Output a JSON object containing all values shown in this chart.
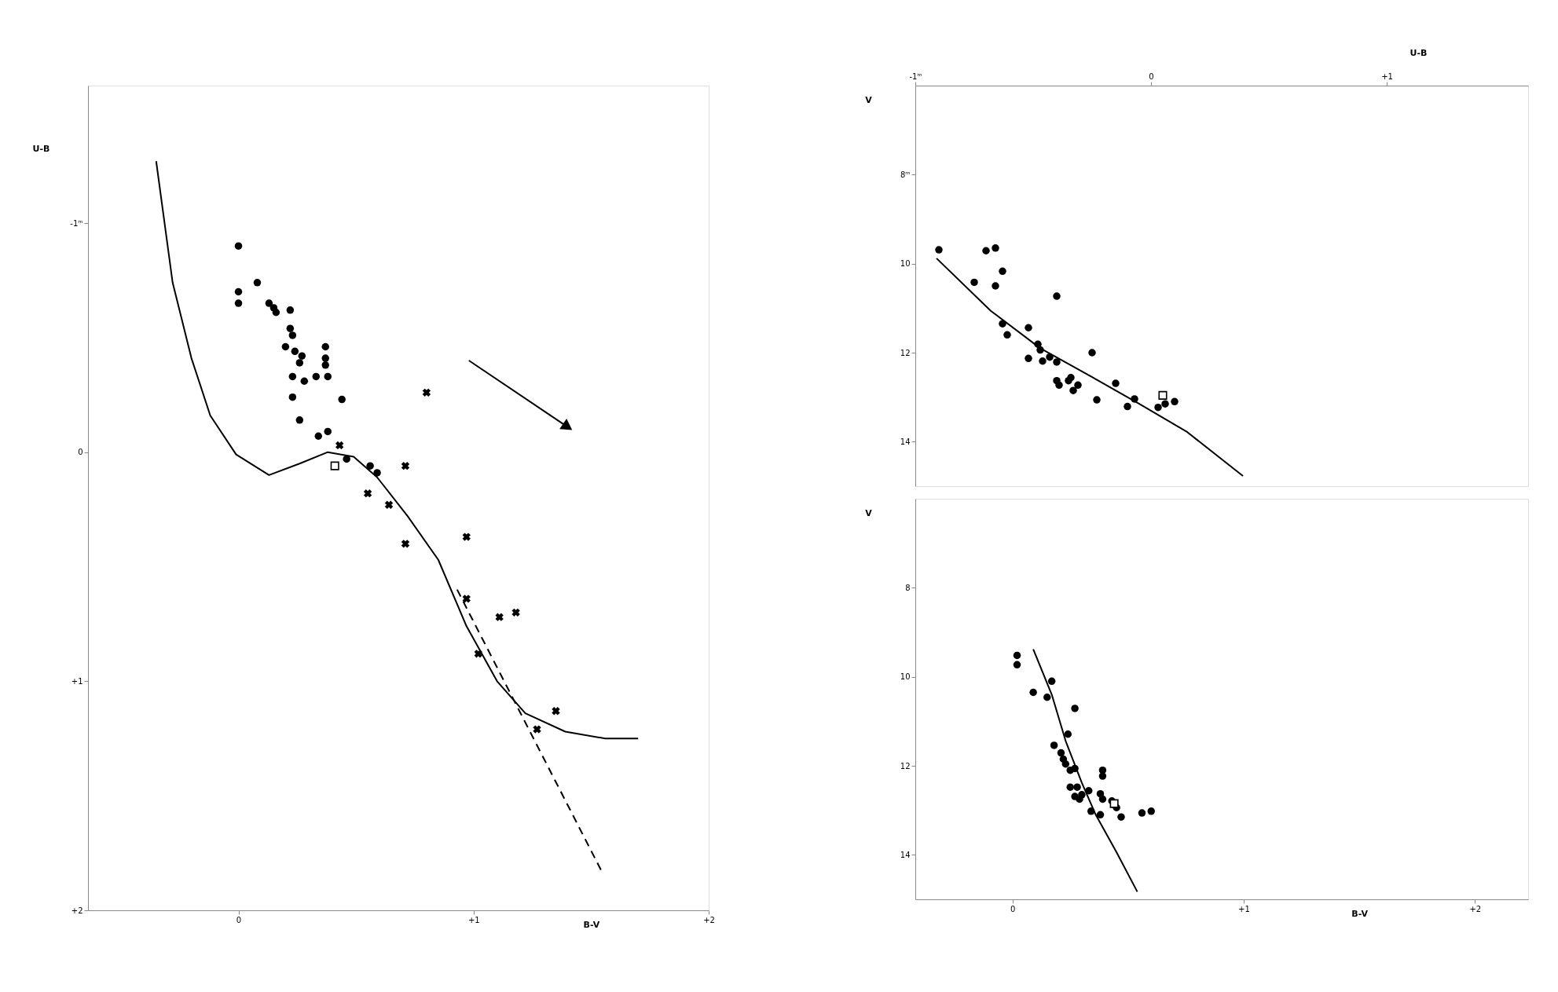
{
  "chart_data": [
    {
      "type": "scatter",
      "xlabel": "B-V",
      "ylabel": "U-B",
      "xlim": [
        -0.64,
        2.0
      ],
      "ylim": [
        2.0,
        -1.6
      ],
      "xticks": [
        {
          "value": 0,
          "label": "0"
        },
        {
          "value": 1,
          "label": "+1"
        },
        {
          "value": 2,
          "label": "+2"
        }
      ],
      "yticks": [
        {
          "value": -1,
          "label": "-1ᵐ"
        },
        {
          "value": 0,
          "label": "0"
        },
        {
          "value": 1,
          "label": "+1"
        },
        {
          "value": 2,
          "label": "+2"
        }
      ],
      "series": [
        {
          "type": "line",
          "color": "#000000",
          "line_style": "solid",
          "x": [
            -0.35,
            -0.28,
            -0.2,
            -0.12,
            -0.01,
            0.13,
            0.26,
            0.38,
            0.49,
            0.59,
            0.72,
            0.85,
            0.97,
            1.1,
            1.22,
            1.39,
            1.56,
            1.7
          ],
          "values": [
            -1.27,
            -0.74,
            -0.41,
            -0.16,
            0.01,
            0.1,
            0.05,
            0.0,
            0.02,
            0.11,
            0.28,
            0.47,
            0.76,
            1.0,
            1.14,
            1.22,
            1.25,
            1.25
          ]
        },
        {
          "type": "line",
          "color": "#000000",
          "line_style": "dashed",
          "x": [
            0.93,
            1.55
          ],
          "values": [
            0.6,
            1.84
          ]
        },
        {
          "type": "line",
          "color": "#000000",
          "line_style": "solid",
          "marker": "triangle",
          "x": [
            0.98,
            1.4
          ],
          "values": [
            -0.4,
            -0.11
          ]
        },
        {
          "color": "#000000",
          "marker": "circle",
          "x": [
            0.0,
            0.08,
            0.13,
            0.16,
            0.22,
            0.22,
            0.23,
            0.2,
            0.24,
            0.27,
            0.26,
            0.23,
            0.28,
            0.33,
            0.37,
            0.37,
            0.37,
            0.38,
            0.44,
            0.26,
            0.34,
            0.38
          ],
          "values": [
            -0.9,
            -0.74,
            -0.65,
            -0.61,
            -0.62,
            -0.54,
            -0.51,
            -0.46,
            -0.44,
            -0.42,
            -0.39,
            -0.33,
            -0.31,
            -0.33,
            -0.46,
            -0.41,
            -0.38,
            -0.33,
            -0.23,
            -0.14,
            -0.07,
            -0.09
          ]
        },
        {
          "color": "#000000",
          "marker": "circle",
          "x": [
            0.0,
            0.0,
            0.15,
            0.23,
            0.46,
            0.56,
            0.59
          ],
          "values": [
            -0.7,
            -0.65,
            -0.63,
            -0.24,
            0.03,
            0.06,
            0.09
          ]
        },
        {
          "color": "#000000",
          "marker": "square",
          "x": [
            0.41
          ],
          "values": [
            0.06
          ]
        },
        {
          "color": "#000000",
          "marker": "cross",
          "x": [
            0.43,
            0.8,
            0.71,
            0.55,
            0.64,
            0.71,
            0.97,
            0.97,
            1.11,
            1.18,
            1.02,
            1.35,
            1.27
          ],
          "values": [
            -0.03,
            -0.26,
            0.06,
            0.18,
            0.23,
            0.4,
            0.37,
            0.64,
            0.72,
            0.7,
            0.88,
            1.13,
            1.21
          ]
        }
      ]
    },
    {
      "type": "scatter",
      "xlabel": "U-B",
      "ylabel": "V",
      "xlim": [
        -1.0,
        1.6
      ],
      "ylim": [
        15.0,
        6.0
      ],
      "xticks": [
        {
          "value": -1,
          "label": "-1ᵐ"
        },
        {
          "value": 0,
          "label": "0"
        },
        {
          "value": 1,
          "label": "+1"
        }
      ],
      "yticks": [
        {
          "value": 8,
          "label": "8ᵐ"
        },
        10,
        12,
        14
      ],
      "series": [
        {
          "type": "line",
          "color": "#000000",
          "line_style": "solid",
          "x": [
            -0.91,
            -0.68,
            -0.47,
            -0.26,
            -0.05,
            0.15,
            0.39
          ],
          "values": [
            9.88,
            11.06,
            11.9,
            12.52,
            13.15,
            13.77,
            14.77
          ]
        },
        {
          "color": "#000000",
          "marker": "circle",
          "x": [
            -0.9,
            -0.75,
            -0.66,
            -0.63,
            -0.61,
            -0.52,
            -0.48,
            -0.47,
            -0.52,
            -0.46,
            -0.43,
            -0.4,
            -0.4,
            -0.39,
            -0.35,
            -0.34,
            -0.33,
            -0.31,
            -0.23,
            -0.15,
            -0.1,
            -0.07
          ],
          "values": [
            9.69,
            10.42,
            10.5,
            11.35,
            11.6,
            11.44,
            11.81,
            11.94,
            12.13,
            12.19,
            12.1,
            12.21,
            12.63,
            12.73,
            12.63,
            12.56,
            12.85,
            12.73,
            13.06,
            12.69,
            13.21,
            13.04
          ]
        },
        {
          "color": "#000000",
          "marker": "circle",
          "x": [
            -0.7,
            -0.66,
            -0.63,
            -0.4,
            -0.25,
            0.03,
            0.06,
            0.1
          ],
          "values": [
            9.71,
            9.65,
            10.17,
            10.73,
            12.0,
            13.23,
            13.15,
            13.1
          ]
        },
        {
          "color": "#000000",
          "marker": "square",
          "x": [
            0.05
          ],
          "values": [
            12.96
          ]
        }
      ]
    },
    {
      "type": "scatter",
      "xlabel": "B-V",
      "ylabel": "V",
      "xlim": [
        -0.42,
        2.23
      ],
      "ylim": [
        15.0,
        6.0
      ],
      "xticks": [
        {
          "value": 0,
          "label": "0"
        },
        {
          "value": 1,
          "label": "+1"
        },
        {
          "value": 2,
          "label": "+2"
        }
      ],
      "yticks": [
        8,
        10,
        12,
        14
      ],
      "series": [
        {
          "type": "line",
          "color": "#000000",
          "line_style": "solid",
          "x": [
            0.09,
            0.17,
            0.23,
            0.3,
            0.36,
            0.45,
            0.54
          ],
          "values": [
            9.38,
            10.4,
            11.44,
            12.38,
            13.1,
            13.94,
            14.83
          ]
        },
        {
          "color": "#000000",
          "marker": "circle",
          "x": [
            0.09,
            0.15,
            0.18,
            0.24,
            0.21,
            0.22,
            0.23,
            0.25,
            0.27,
            0.25,
            0.28,
            0.27,
            0.3,
            0.29,
            0.33,
            0.39,
            0.39,
            0.38,
            0.39,
            0.34,
            0.38,
            0.43,
            0.45
          ],
          "values": [
            10.35,
            10.46,
            11.54,
            11.29,
            11.71,
            11.85,
            11.96,
            12.1,
            12.06,
            12.48,
            12.48,
            12.69,
            12.65,
            12.75,
            12.56,
            12.1,
            12.23,
            12.63,
            12.75,
            13.02,
            13.1,
            12.79,
            12.94
          ]
        },
        {
          "color": "#000000",
          "marker": "circle",
          "x": [
            0.02,
            0.02,
            0.17,
            0.27,
            0.47,
            0.56,
            0.6
          ],
          "values": [
            9.52,
            9.73,
            10.1,
            10.71,
            13.15,
            13.06,
            13.02
          ]
        },
        {
          "color": "#000000",
          "marker": "square",
          "x": [
            0.44
          ],
          "values": [
            12.85
          ]
        }
      ]
    }
  ]
}
